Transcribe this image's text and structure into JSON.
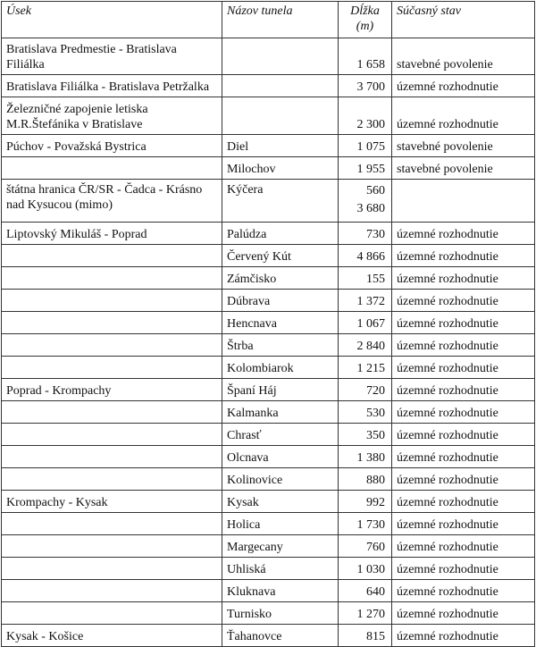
{
  "headers": {
    "usek": "Úsek",
    "nazov": "Názov tunela",
    "dlzka": "Dĺžka (m)",
    "stav": "Súčasný stav"
  },
  "rows": [
    {
      "usek": "Bratislava Predmestie - Bratislava Filiálka",
      "nazov": "",
      "dlzka": "1 658",
      "stav": "stavebné povolenie"
    },
    {
      "usek": "Bratislava Filiálka - Bratislava Petržalka",
      "nazov": "",
      "dlzka": "3 700",
      "stav": "územné rozhodnutie"
    },
    {
      "usek": "Železničné zapojenie letiska M.R.Štefánika v Bratislave",
      "nazov": "",
      "dlzka": "2 300",
      "stav": "územné rozhodnutie"
    },
    {
      "usek": "Púchov - Považská Bystrica",
      "nazov": "Diel",
      "dlzka": "1 075",
      "stav": "stavebné povolenie"
    },
    {
      "usek": "",
      "nazov": "Milochov",
      "dlzka": "1 955",
      "stav": "stavebné povolenie"
    },
    {
      "usek": "štátna hranica ČR/SR - Čadca - Krásno nad Kysucou (mimo)",
      "nazov": "Kýčera",
      "dlzka": "560",
      "dlzka2": "3 680",
      "stav": ""
    },
    {
      "usek": "Liptovský Mikuláš - Poprad",
      "nazov": "Palúdza",
      "dlzka": "730",
      "stav": "územné rozhodnutie"
    },
    {
      "usek": "",
      "nazov": "Červený Kút",
      "dlzka": "4 866",
      "stav": "územné rozhodnutie"
    },
    {
      "usek": "",
      "nazov": "Zámčisko",
      "dlzka": "155",
      "stav": "územné rozhodnutie"
    },
    {
      "usek": "",
      "nazov": "Dúbrava",
      "dlzka": "1 372",
      "stav": "územné rozhodnutie"
    },
    {
      "usek": "",
      "nazov": "Hencnava",
      "dlzka": "1 067",
      "stav": "územné rozhodnutie"
    },
    {
      "usek": "",
      "nazov": "Štrba",
      "dlzka": "2 840",
      "stav": "územné rozhodnutie"
    },
    {
      "usek": "",
      "nazov": "Kolombiarok",
      "dlzka": "1 215",
      "stav": "územné rozhodnutie"
    },
    {
      "usek": "Poprad - Krompachy",
      "nazov": "Španí Háj",
      "dlzka": "720",
      "stav": "územné rozhodnutie"
    },
    {
      "usek": "",
      "nazov": "Kalmanka",
      "dlzka": "530",
      "stav": "územné rozhodnutie"
    },
    {
      "usek": "",
      "nazov": "Chrasť",
      "dlzka": "350",
      "stav": "územné rozhodnutie"
    },
    {
      "usek": "",
      "nazov": "Olcnava",
      "dlzka": "1 380",
      "stav": "územné rozhodnutie"
    },
    {
      "usek": "",
      "nazov": "Kolinovice",
      "dlzka": "880",
      "stav": "územné rozhodnutie"
    },
    {
      "usek": "Krompachy - Kysak",
      "nazov": "Kysak",
      "dlzka": "992",
      "stav": "územné rozhodnutie"
    },
    {
      "usek": "",
      "nazov": "Holica",
      "dlzka": "1 730",
      "stav": "územné rozhodnutie"
    },
    {
      "usek": "",
      "nazov": "Margecany",
      "dlzka": "760",
      "stav": "územné rozhodnutie"
    },
    {
      "usek": "",
      "nazov": "Uhliská",
      "dlzka": "1 030",
      "stav": "územné rozhodnutie"
    },
    {
      "usek": "",
      "nazov": "Kluknava",
      "dlzka": "640",
      "stav": "územné rozhodnutie"
    },
    {
      "usek": "",
      "nazov": "Turnisko",
      "dlzka": "1 270",
      "stav": "územné rozhodnutie"
    },
    {
      "usek": "Kysak - Košice",
      "nazov": "Ťahanovce",
      "dlzka": "815",
      "stav": "územné rozhodnutie"
    }
  ]
}
